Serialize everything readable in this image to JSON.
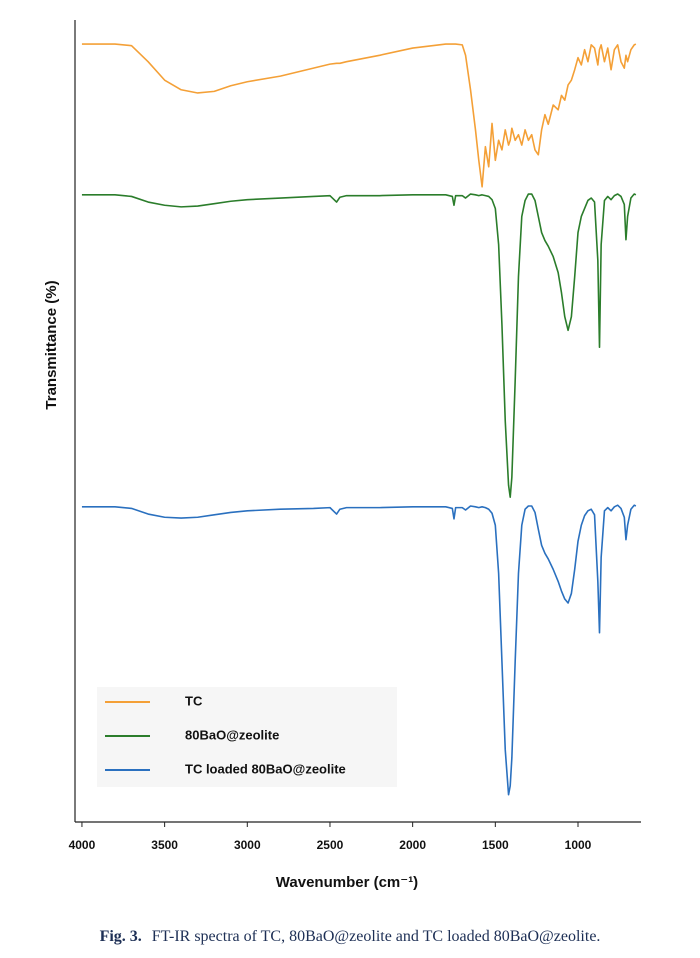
{
  "chart_data": {
    "type": "line",
    "xlabel": "Wavenumber (cm⁻¹)",
    "ylabel": "Transmittance (%)",
    "caption_label": "Fig. 3.",
    "caption": "FT-IR spectra of TC, 80BaO@zeolite and TC loaded 80BaO@zeolite.",
    "xlim": [
      4042,
      619
    ],
    "xticks": [
      4000,
      3500,
      3000,
      2500,
      2000,
      1500,
      1000
    ],
    "ylim": [
      0,
      100
    ],
    "grid": false,
    "legend": "lower left",
    "x": [
      4000,
      3800,
      3700,
      3600,
      3500,
      3400,
      3300,
      3200,
      3100,
      3000,
      2800,
      2600,
      2500,
      2460,
      2440,
      2400,
      2200,
      2000,
      1800,
      1760,
      1750,
      1740,
      1700,
      1680,
      1650,
      1620,
      1600,
      1580,
      1560,
      1540,
      1520,
      1500,
      1480,
      1460,
      1440,
      1420,
      1410,
      1400,
      1380,
      1360,
      1340,
      1320,
      1300,
      1280,
      1260,
      1240,
      1220,
      1200,
      1180,
      1150,
      1120,
      1100,
      1080,
      1060,
      1040,
      1020,
      1000,
      980,
      960,
      940,
      920,
      900,
      880,
      870,
      860,
      840,
      820,
      800,
      780,
      760,
      740,
      720,
      710,
      700,
      680,
      660,
      650
    ],
    "series": [
      {
        "name": "TC",
        "color": "#f4a037",
        "values": [
          97.0,
          97.0,
          96.8,
          94.8,
          92.5,
          91.3,
          90.9,
          91.1,
          91.8,
          92.3,
          93.0,
          94.0,
          94.5,
          94.6,
          94.6,
          94.8,
          95.6,
          96.5,
          97.0,
          97.0,
          97.0,
          97.0,
          96.9,
          95.6,
          91.3,
          86.3,
          82.5,
          79.2,
          84.2,
          81.7,
          87.1,
          82.5,
          85.0,
          83.8,
          86.3,
          84.4,
          85.0,
          86.5,
          85.0,
          85.7,
          84.4,
          86.3,
          85.0,
          85.7,
          83.8,
          83.2,
          86.3,
          88.2,
          87.0,
          89.4,
          88.8,
          90.6,
          90.0,
          91.9,
          92.5,
          93.8,
          95.3,
          94.4,
          96.3,
          94.8,
          96.9,
          96.5,
          94.4,
          96.3,
          96.9,
          94.8,
          96.5,
          93.8,
          96.3,
          96.9,
          94.8,
          94.0,
          95.6,
          94.8,
          96.3,
          96.9,
          97.0
        ]
      },
      {
        "name": "80BaO@zeolite",
        "color": "#2b7d2b",
        "values": [
          78.2,
          78.2,
          78.0,
          77.3,
          76.9,
          76.7,
          76.8,
          77.1,
          77.4,
          77.6,
          77.8,
          78.0,
          78.1,
          77.3,
          77.9,
          78.1,
          78.1,
          78.2,
          78.2,
          78.0,
          76.9,
          78.1,
          78.1,
          77.8,
          78.3,
          78.2,
          78.1,
          78.2,
          78.1,
          78.0,
          77.6,
          76.5,
          72.0,
          62.0,
          50.0,
          42.0,
          40.5,
          43.0,
          55.0,
          68.0,
          75.5,
          77.5,
          78.3,
          78.3,
          77.5,
          75.5,
          73.5,
          72.5,
          71.8,
          70.5,
          68.5,
          66.0,
          63.0,
          61.3,
          63.0,
          68.0,
          73.5,
          75.5,
          76.5,
          77.5,
          77.8,
          77.3,
          70.0,
          59.2,
          72.0,
          77.5,
          78.0,
          77.6,
          78.1,
          78.3,
          78.0,
          77.0,
          72.6,
          75.5,
          77.8,
          78.3,
          78.2
        ]
      },
      {
        "name": "TC loaded 80BaO@zeolite",
        "color": "#2a70bf",
        "values": [
          39.3,
          39.3,
          39.1,
          38.4,
          38.0,
          37.9,
          38.0,
          38.3,
          38.6,
          38.8,
          39.0,
          39.1,
          39.2,
          38.4,
          39.0,
          39.2,
          39.2,
          39.3,
          39.3,
          39.1,
          37.8,
          39.2,
          39.2,
          38.9,
          39.4,
          39.3,
          39.2,
          39.3,
          39.2,
          39.0,
          38.5,
          37.0,
          31.0,
          20.0,
          9.0,
          3.4,
          4.5,
          8.0,
          20.0,
          31.0,
          37.0,
          39.0,
          39.4,
          39.4,
          38.6,
          36.5,
          34.5,
          33.5,
          32.8,
          31.5,
          30.0,
          28.8,
          27.8,
          27.3,
          28.5,
          31.5,
          35.0,
          37.0,
          38.2,
          38.8,
          39.0,
          38.3,
          30.0,
          23.6,
          33.0,
          38.8,
          39.2,
          38.8,
          39.3,
          39.5,
          39.1,
          38.0,
          35.2,
          37.0,
          39.0,
          39.5,
          39.4
        ]
      }
    ]
  }
}
